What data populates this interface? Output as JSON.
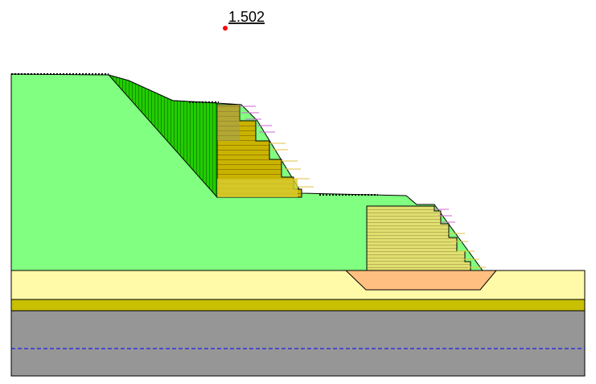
{
  "factor_of_safety": "1.502"
}
